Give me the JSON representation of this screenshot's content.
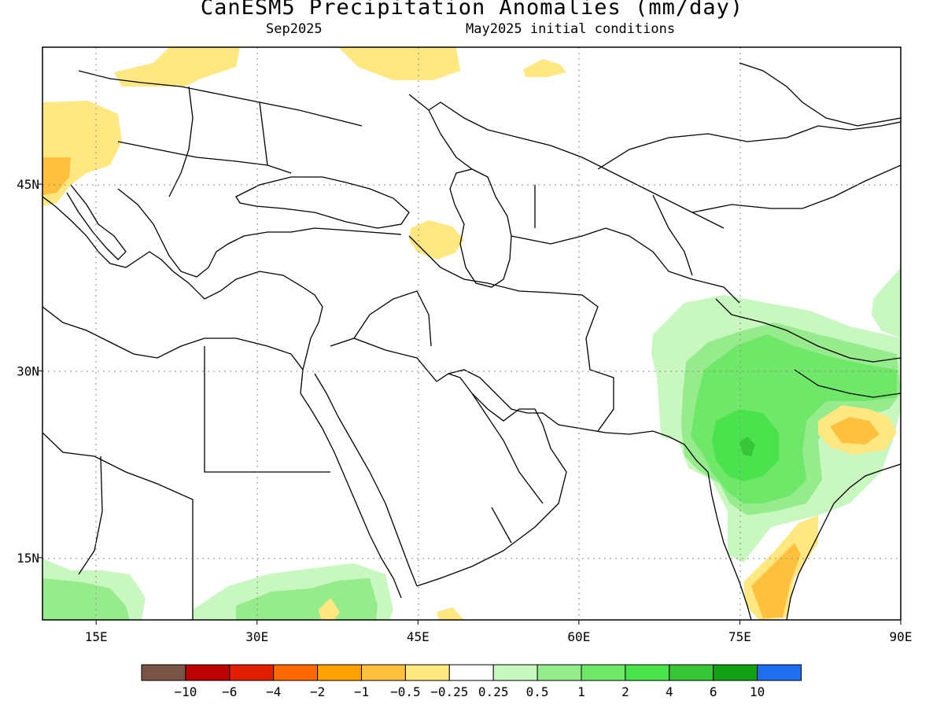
{
  "title": "CanESM5 Precipitation Anomalies (mm/day)",
  "subtitle_left": "Sep2025",
  "subtitle_right": "May2025 initial conditions",
  "axes": {
    "x_ticks": [
      {
        "lon": 15,
        "label": "15E"
      },
      {
        "lon": 30,
        "label": "30E"
      },
      {
        "lon": 45,
        "label": "45E"
      },
      {
        "lon": 60,
        "label": "60E"
      },
      {
        "lon": 75,
        "label": "75E"
      },
      {
        "lon": 90,
        "label": "90E"
      }
    ],
    "y_ticks": [
      {
        "lat": 45,
        "label": "45N"
      },
      {
        "lat": 30,
        "label": "30N"
      },
      {
        "lat": 15,
        "label": "15N"
      }
    ],
    "lon_range": [
      10,
      90
    ],
    "lat_range": [
      10,
      56
    ],
    "grid": "dotted"
  },
  "colorbar": {
    "colors": [
      "#7a5546",
      "#bd0000",
      "#e01e00",
      "#ff6a00",
      "#ffa200",
      "#ffc03e",
      "#ffe781",
      "#ffffff",
      "#c8f7c0",
      "#96eb8c",
      "#6fe768",
      "#4be34d",
      "#37c637",
      "#139f13",
      "#1f6ef0"
    ],
    "labels": [
      "−10",
      "−6",
      "−4",
      "−2",
      "−1",
      "−0.5",
      "−0.25",
      "0.25",
      "0.5",
      "1",
      "2",
      "4",
      "6",
      "10"
    ]
  },
  "map_colors": {
    "neg_025": "#ffe781",
    "neg_05": "#ffc03e",
    "pos_025": "#c8f7c0",
    "pos_05": "#96eb8c",
    "pos_1": "#6fe768",
    "pos_2": "#4be34d",
    "pos_4": "#37c637"
  }
}
